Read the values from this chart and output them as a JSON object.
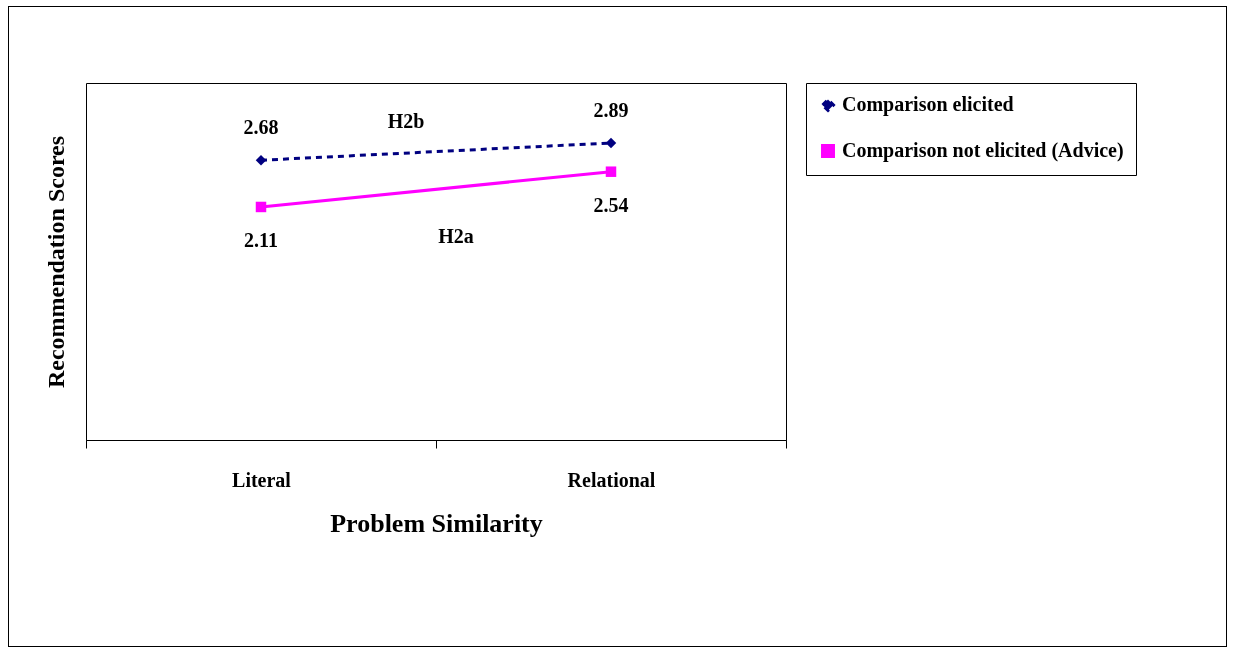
{
  "chart_data": {
    "type": "line",
    "xlabel": "Problem Similarity",
    "ylabel": "Recommendation Scores",
    "categories": [
      "Literal",
      "Relational"
    ],
    "series": [
      {
        "name": "Comparison elicited",
        "color": "#000080",
        "values": [
          2.68,
          2.89
        ],
        "marker": "diamond",
        "line_style": "dashed"
      },
      {
        "name": "Comparison not elicited (Advice)",
        "color": "#ff00ff",
        "values": [
          2.11,
          2.54
        ],
        "marker": "square",
        "line_style": "solid"
      }
    ],
    "data_labels": true,
    "grid": false,
    "legend": "right",
    "annotations": [
      "H2b",
      "H2a"
    ]
  }
}
